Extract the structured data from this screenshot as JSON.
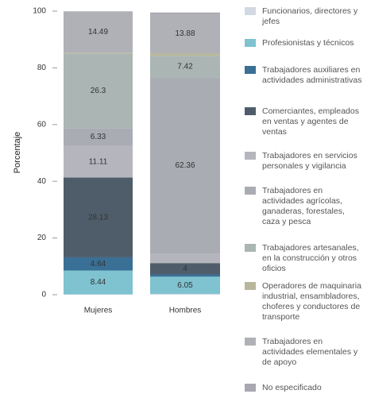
{
  "chart_data": {
    "type": "stacked_bar",
    "y_label": "Porcentaje",
    "categories": [
      "Mujeres",
      "Hombres"
    ],
    "ylim": [
      0,
      100
    ],
    "yticks": [
      0,
      20,
      40,
      60,
      80,
      100
    ],
    "series": [
      {
        "name": "Funcionarios, directores y jefes",
        "color": "#d3d9e2",
        "values": [
          0.1,
          0.3
        ]
      },
      {
        "name": "Profesionistas y técnicos",
        "color": "#7ec3cf",
        "values": [
          8.44,
          6.05
        ]
      },
      {
        "name": "Trabajadores auxiliares en actividades administrativas",
        "color": "#3a6f96",
        "values": [
          4.64,
          0.8
        ]
      },
      {
        "name": "Comerciantes, empleados en ventas y agentes de ventas",
        "color": "#4f5d6a",
        "values": [
          28.13,
          4
        ]
      },
      {
        "name": "Trabajadores en servicios personales y vigilancia",
        "color": "#b5b6bd",
        "values": [
          11.11,
          3.2
        ]
      },
      {
        "name": "Trabajadores en actividades agrícolas, ganaderas, forestales, caza y pesca",
        "color": "#aaacb3",
        "values": [
          6.33,
          62.36
        ]
      },
      {
        "name": "Trabajadores artesanales, en la construcción y otros oficios",
        "color": "#aab5b4",
        "values": [
          26.3,
          7.42
        ]
      },
      {
        "name": "Operadores de maquinaria industrial, ensambladores, choferes y conductores de transporte",
        "color": "#b8b69c",
        "values": [
          0.3,
          1
        ]
      },
      {
        "name": "Trabajadores en actividades elementales y de apoyo",
        "color": "#b0b1b6",
        "values": [
          14.49,
          13.88
        ]
      },
      {
        "name": "No especificado",
        "color": "#a9a7b0",
        "values": [
          0.1,
          0.5
        ]
      }
    ]
  }
}
